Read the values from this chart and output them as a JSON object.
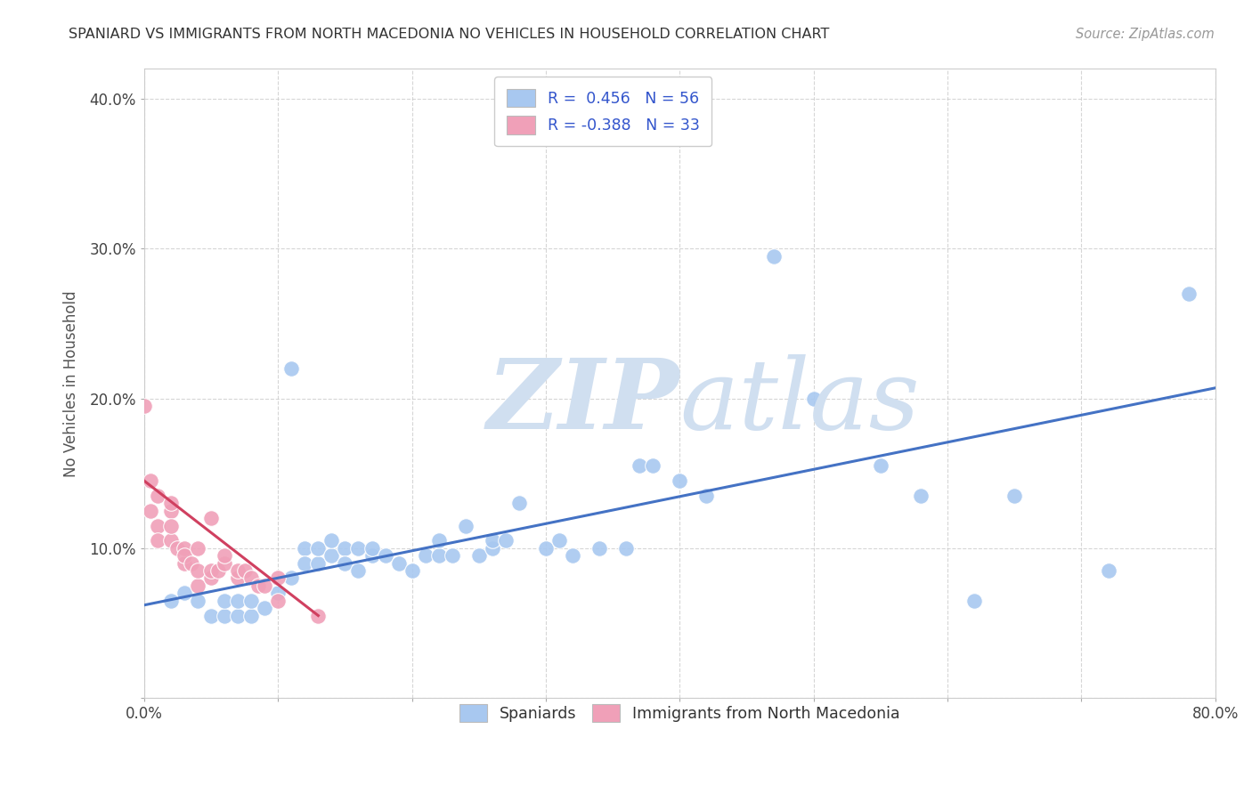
{
  "title": "SPANIARD VS IMMIGRANTS FROM NORTH MACEDONIA NO VEHICLES IN HOUSEHOLD CORRELATION CHART",
  "source": "Source: ZipAtlas.com",
  "ylabel": "No Vehicles in Household",
  "xlim": [
    0.0,
    0.8
  ],
  "ylim": [
    0.0,
    0.42
  ],
  "x_ticks": [
    0.0,
    0.1,
    0.2,
    0.3,
    0.4,
    0.5,
    0.6,
    0.7,
    0.8
  ],
  "y_ticks": [
    0.0,
    0.1,
    0.2,
    0.3,
    0.4
  ],
  "legend_blue_label": "R =  0.456   N = 56",
  "legend_pink_label": "R = -0.388   N = 33",
  "legend_blue_patch": "Spaniards",
  "legend_pink_patch": "Immigrants from North Macedonia",
  "blue_color": "#A8C8F0",
  "pink_color": "#F0A0B8",
  "blue_line_color": "#4472C4",
  "pink_line_color": "#D04060",
  "watermark_color": "#D0DFF0",
  "blue_scatter_x": [
    0.02,
    0.03,
    0.04,
    0.05,
    0.06,
    0.06,
    0.07,
    0.07,
    0.08,
    0.08,
    0.09,
    0.1,
    0.11,
    0.11,
    0.12,
    0.12,
    0.13,
    0.13,
    0.14,
    0.14,
    0.15,
    0.15,
    0.16,
    0.16,
    0.17,
    0.17,
    0.18,
    0.19,
    0.2,
    0.21,
    0.22,
    0.22,
    0.23,
    0.24,
    0.25,
    0.26,
    0.26,
    0.27,
    0.28,
    0.3,
    0.31,
    0.32,
    0.34,
    0.36,
    0.37,
    0.38,
    0.4,
    0.42,
    0.47,
    0.5,
    0.55,
    0.58,
    0.62,
    0.65,
    0.72,
    0.78
  ],
  "blue_scatter_y": [
    0.065,
    0.07,
    0.065,
    0.055,
    0.055,
    0.065,
    0.055,
    0.065,
    0.055,
    0.065,
    0.06,
    0.07,
    0.22,
    0.08,
    0.1,
    0.09,
    0.09,
    0.1,
    0.095,
    0.105,
    0.1,
    0.09,
    0.1,
    0.085,
    0.095,
    0.1,
    0.095,
    0.09,
    0.085,
    0.095,
    0.095,
    0.105,
    0.095,
    0.115,
    0.095,
    0.1,
    0.105,
    0.105,
    0.13,
    0.1,
    0.105,
    0.095,
    0.1,
    0.1,
    0.155,
    0.155,
    0.145,
    0.135,
    0.295,
    0.2,
    0.155,
    0.135,
    0.065,
    0.135,
    0.085,
    0.27
  ],
  "pink_scatter_x": [
    0.0,
    0.005,
    0.005,
    0.01,
    0.01,
    0.01,
    0.02,
    0.02,
    0.02,
    0.02,
    0.025,
    0.03,
    0.03,
    0.03,
    0.035,
    0.04,
    0.04,
    0.04,
    0.05,
    0.05,
    0.05,
    0.055,
    0.06,
    0.06,
    0.07,
    0.07,
    0.075,
    0.08,
    0.085,
    0.09,
    0.1,
    0.1,
    0.13
  ],
  "pink_scatter_y": [
    0.195,
    0.125,
    0.145,
    0.135,
    0.115,
    0.105,
    0.125,
    0.13,
    0.105,
    0.115,
    0.1,
    0.09,
    0.1,
    0.095,
    0.09,
    0.075,
    0.085,
    0.1,
    0.08,
    0.085,
    0.12,
    0.085,
    0.09,
    0.095,
    0.08,
    0.085,
    0.085,
    0.08,
    0.075,
    0.075,
    0.065,
    0.08,
    0.055
  ],
  "blue_line_x0": 0.0,
  "blue_line_x1": 0.8,
  "blue_line_y0": 0.062,
  "blue_line_y1": 0.207,
  "pink_line_x0": 0.0,
  "pink_line_x1": 0.13,
  "pink_line_y0": 0.145,
  "pink_line_y1": 0.055
}
